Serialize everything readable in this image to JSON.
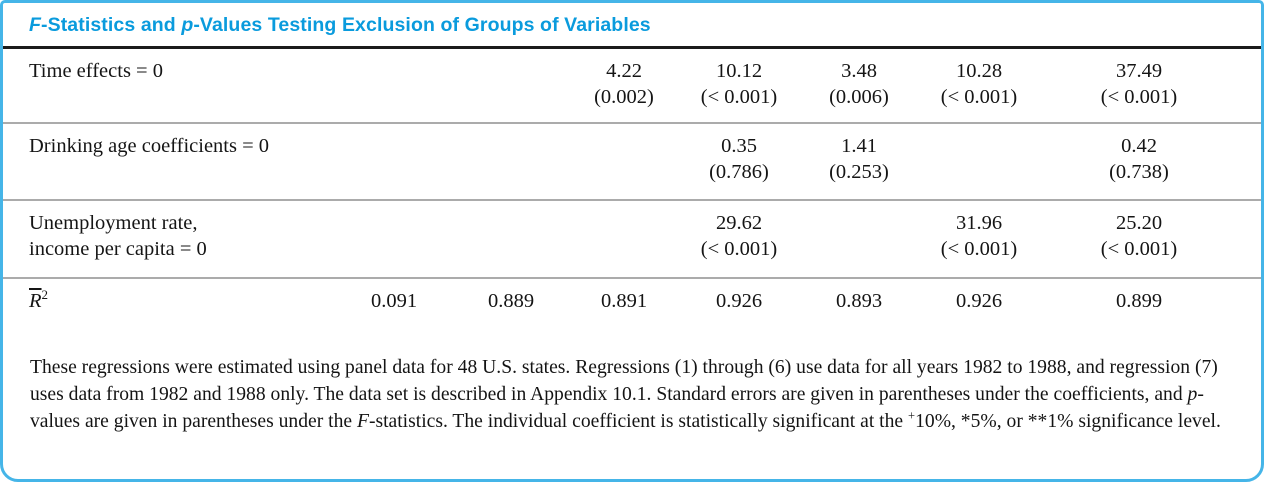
{
  "title": {
    "segments": [
      {
        "t": "F",
        "i": true
      },
      {
        "t": "-Statistics and "
      },
      {
        "t": "p",
        "i": true
      },
      {
        "t": "-Values Testing Exclusion of Groups of Variables"
      }
    ]
  },
  "table": {
    "num_columns": 7,
    "rows": [
      {
        "label": "Time effects = 0",
        "cells": [
          null,
          null,
          {
            "f": "4.22",
            "p": "(0.002)"
          },
          {
            "f": "10.12",
            "p": "(< 0.001)"
          },
          {
            "f": "3.48",
            "p": "(0.006)"
          },
          {
            "f": "10.28",
            "p": "(< 0.001)"
          },
          {
            "f": "37.49",
            "p": "(< 0.001)"
          }
        ]
      },
      {
        "label": "Drinking age coefficients = 0",
        "cells": [
          null,
          null,
          null,
          {
            "f": "0.35",
            "p": "(0.786)"
          },
          {
            "f": "1.41",
            "p": "(0.253)"
          },
          null,
          {
            "f": "0.42",
            "p": "(0.738)"
          }
        ]
      },
      {
        "label": "Unemployment rate,\nincome per capita = 0",
        "cells": [
          null,
          null,
          null,
          {
            "f": "29.62",
            "p": "(< 0.001)"
          },
          null,
          {
            "f": "31.96",
            "p": "(< 0.001)"
          },
          {
            "f": "25.20",
            "p": "(< 0.001)"
          }
        ]
      }
    ],
    "rbar_row": {
      "label_base": "R",
      "label_sup": "2",
      "values": [
        "0.091",
        "0.889",
        "0.891",
        "0.926",
        "0.893",
        "0.926",
        "0.899"
      ]
    }
  },
  "footnote": {
    "segments": [
      {
        "t": "These regressions were estimated using panel data for 48 U.S. states. Regressions (1) through (6) use data for all years 1982 to 1988, and regression (7) uses data from 1982 and 1988 only. The data set is described in Appendix 10.1. Standard errors are given in parentheses under the coefficients, and "
      },
      {
        "t": "p",
        "i": true
      },
      {
        "t": "-values are given in parentheses under the "
      },
      {
        "t": "F",
        "i": true
      },
      {
        "t": "-statistics. The individual coefficient is statistically significant at the "
      },
      {
        "t": "+",
        "sup": true
      },
      {
        "t": "10%, *5%, or **1% significance level."
      }
    ]
  },
  "colors": {
    "border_cyan": "#45b5e8",
    "title_blue": "#0a9bdd",
    "rule_dark": "#1b1b1b",
    "separator_gray": "#ababab",
    "text": "#151515"
  }
}
